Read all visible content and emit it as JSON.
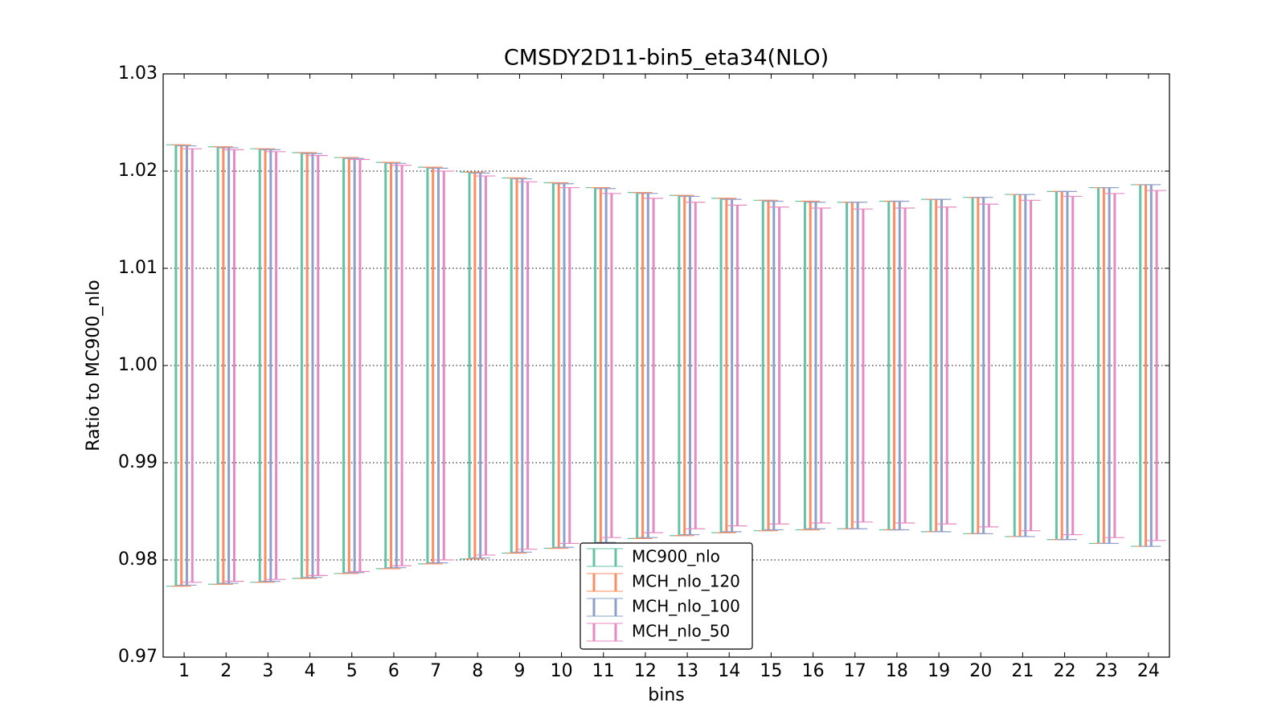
{
  "chart_data": {
    "type": "errorbar",
    "title": "CMSDY2D11-bin5_eta34(NLO)",
    "x_label": "bins",
    "y_label": "Ratio to MC900_nlo",
    "x": [
      1,
      2,
      3,
      4,
      5,
      6,
      7,
      8,
      9,
      10,
      11,
      12,
      13,
      14,
      15,
      16,
      17,
      18,
      19,
      20,
      21,
      22,
      23,
      24
    ],
    "xlim": [
      0.5,
      24.5
    ],
    "xticks": [
      1,
      2,
      3,
      4,
      5,
      6,
      7,
      8,
      9,
      10,
      11,
      12,
      13,
      14,
      15,
      16,
      17,
      18,
      19,
      20,
      21,
      22,
      23,
      24
    ],
    "ylim": [
      0.97,
      1.03
    ],
    "yticks": [
      0.97,
      0.98,
      0.99,
      {
        "value": 1.0,
        "label": "1.00"
      },
      1.01,
      1.02,
      1.03
    ],
    "grid": true,
    "legend": "lower center",
    "series": [
      {
        "name": "MC900_nlo",
        "color": "#66c2a5",
        "high": [
          1.0227,
          1.0225,
          1.0223,
          1.0219,
          1.0214,
          1.0209,
          1.0204,
          1.0199,
          1.0193,
          1.0188,
          1.0183,
          1.0178,
          1.0175,
          1.0172,
          1.017,
          1.0169,
          1.0168,
          1.0169,
          1.0171,
          1.0173,
          1.0176,
          1.0179,
          1.0183,
          1.0186
        ],
        "low": [
          0.9773,
          0.9775,
          0.9777,
          0.9781,
          0.9786,
          0.9791,
          0.9796,
          0.9801,
          0.9807,
          0.9812,
          0.9817,
          0.9822,
          0.9825,
          0.9828,
          0.983,
          0.9831,
          0.9832,
          0.9831,
          0.9829,
          0.9827,
          0.9824,
          0.9821,
          0.9817,
          0.9814
        ]
      },
      {
        "name": "MCH_nlo_120",
        "color": "#fc8d62",
        "high": [
          1.0227,
          1.0225,
          1.0223,
          1.0219,
          1.0214,
          1.0209,
          1.0204,
          1.0199,
          1.0193,
          1.0188,
          1.0183,
          1.0178,
          1.0175,
          1.0172,
          1.017,
          1.0169,
          1.0168,
          1.0169,
          1.0171,
          1.0173,
          1.0176,
          1.0179,
          1.0183,
          1.0186
        ],
        "low": [
          0.9773,
          0.9775,
          0.9777,
          0.9781,
          0.9786,
          0.9791,
          0.9796,
          0.9801,
          0.9807,
          0.9812,
          0.9817,
          0.9822,
          0.9825,
          0.9828,
          0.983,
          0.9831,
          0.9832,
          0.9831,
          0.9829,
          0.9827,
          0.9824,
          0.9821,
          0.9817,
          0.9814
        ]
      },
      {
        "name": "MCH_nlo_100",
        "color": "#8da0cb",
        "high": [
          1.0226,
          1.0224,
          1.0222,
          1.0218,
          1.0213,
          1.0208,
          1.0203,
          1.0198,
          1.0192,
          1.0187,
          1.0182,
          1.0177,
          1.0174,
          1.0171,
          1.0169,
          1.0168,
          1.0168,
          1.0169,
          1.0171,
          1.0173,
          1.0176,
          1.0179,
          1.0183,
          1.0186
        ],
        "low": [
          0.9774,
          0.9776,
          0.9778,
          0.9782,
          0.9787,
          0.9792,
          0.9797,
          0.9802,
          0.9808,
          0.9813,
          0.9818,
          0.9823,
          0.9826,
          0.9829,
          0.9831,
          0.9832,
          0.9832,
          0.9831,
          0.9829,
          0.9827,
          0.9824,
          0.9821,
          0.9817,
          0.9814
        ]
      },
      {
        "name": "MCH_nlo_50",
        "color": "#e78ac3",
        "high": [
          1.0223,
          1.0222,
          1.022,
          1.0216,
          1.0212,
          1.0206,
          1.02,
          1.0195,
          1.0189,
          1.0183,
          1.0177,
          1.0172,
          1.0168,
          1.0165,
          1.0163,
          1.0162,
          1.0161,
          1.0162,
          1.0163,
          1.0166,
          1.017,
          1.0174,
          1.0177,
          1.018
        ],
        "low": [
          0.9777,
          0.9778,
          0.978,
          0.9784,
          0.9788,
          0.9794,
          0.98,
          0.9805,
          0.9811,
          0.9817,
          0.9823,
          0.9828,
          0.9832,
          0.9835,
          0.9837,
          0.9838,
          0.9839,
          0.9838,
          0.9837,
          0.9834,
          0.983,
          0.9826,
          0.9823,
          0.982
        ]
      }
    ]
  }
}
